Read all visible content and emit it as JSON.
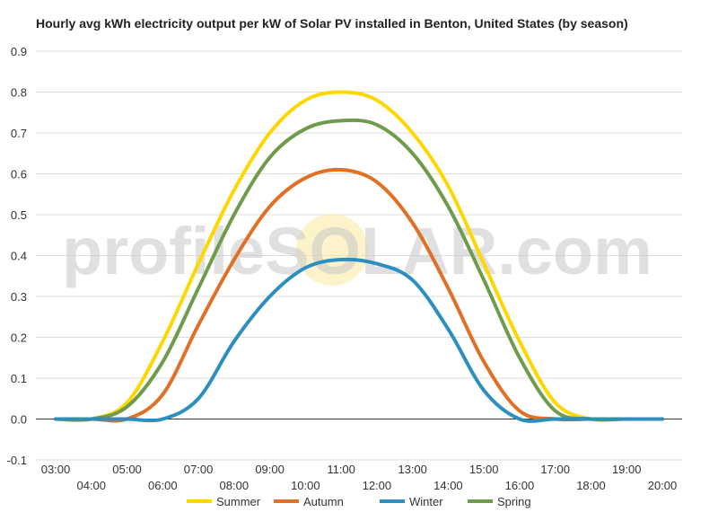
{
  "chart_data": {
    "type": "line",
    "title": "Hourly avg kWh electricity output per kW of Solar PV installed in Benton, United States (by season)",
    "xlabel": "",
    "ylabel": "",
    "x_labels": [
      "03:00",
      "04:00",
      "05:00",
      "06:00",
      "07:00",
      "08:00",
      "09:00",
      "10:00",
      "11:00",
      "12:00",
      "13:00",
      "14:00",
      "15:00",
      "16:00",
      "17:00",
      "18:00",
      "19:00",
      "20:00"
    ],
    "x_range": [
      3,
      20
    ],
    "ylim": [
      -0.1,
      0.9
    ],
    "y_ticks": [
      "-0.1",
      "0.0",
      "0.1",
      "0.2",
      "0.3",
      "0.4",
      "0.5",
      "0.6",
      "0.7",
      "0.8",
      "0.9"
    ],
    "grid": true,
    "legend_position": "bottom",
    "watermark": "profileSOLAR.com",
    "series": [
      {
        "name": "Summer",
        "color": "#FFD700",
        "x": [
          3,
          4,
          5,
          6,
          7,
          8,
          9,
          10,
          11,
          12,
          13,
          14,
          15,
          16,
          17,
          18,
          19,
          20
        ],
        "values": [
          0.0,
          0.0,
          0.04,
          0.19,
          0.38,
          0.56,
          0.7,
          0.78,
          0.8,
          0.78,
          0.7,
          0.57,
          0.38,
          0.19,
          0.04,
          0.0,
          0.0,
          0.0
        ]
      },
      {
        "name": "Autumn",
        "color": "#E07025",
        "x": [
          3,
          4,
          5,
          6,
          7,
          8,
          9,
          10,
          11,
          12,
          13,
          14,
          15,
          16,
          17,
          18,
          19,
          20
        ],
        "values": [
          0.0,
          0.0,
          0.0,
          0.06,
          0.23,
          0.39,
          0.52,
          0.59,
          0.61,
          0.58,
          0.48,
          0.32,
          0.14,
          0.02,
          0.0,
          0.0,
          0.0,
          0.0
        ]
      },
      {
        "name": "Winter",
        "color": "#2C8FBF",
        "x": [
          3,
          4,
          5,
          6,
          7,
          8,
          9,
          10,
          11,
          12,
          13,
          14,
          15,
          16,
          17,
          18,
          19,
          20
        ],
        "values": [
          0.0,
          0.0,
          0.0,
          0.0,
          0.05,
          0.19,
          0.3,
          0.37,
          0.39,
          0.38,
          0.34,
          0.22,
          0.07,
          0.0,
          0.0,
          0.0,
          0.0,
          0.0
        ]
      },
      {
        "name": "Spring",
        "color": "#6E9B4C",
        "x": [
          3,
          4,
          5,
          6,
          7,
          8,
          9,
          10,
          11,
          12,
          13,
          14,
          15,
          16,
          17,
          18,
          19,
          20
        ],
        "values": [
          0.0,
          0.0,
          0.03,
          0.14,
          0.32,
          0.5,
          0.64,
          0.71,
          0.73,
          0.72,
          0.65,
          0.52,
          0.34,
          0.15,
          0.02,
          0.0,
          0.0,
          0.0
        ]
      }
    ]
  }
}
